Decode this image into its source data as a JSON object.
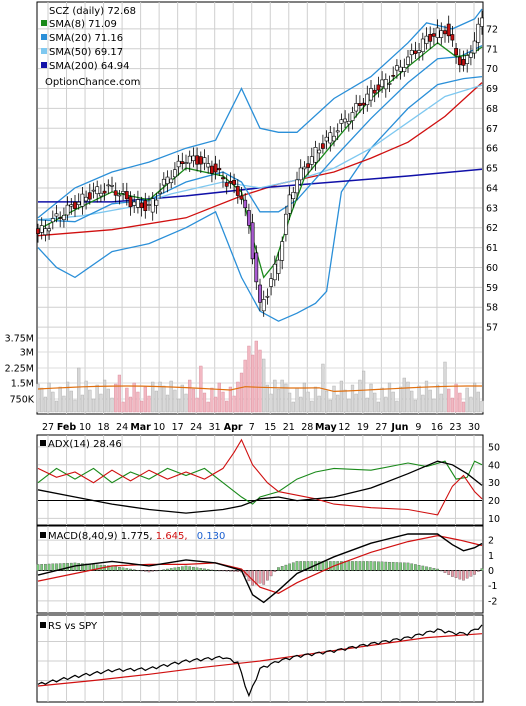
{
  "chart_data": [
    {
      "type": "candlestick",
      "panel": "price",
      "ticker_label": "SCZ (daily)",
      "last_price": "72.68",
      "watermark": "OptionChance.com",
      "legend": [
        {
          "label": "SMA(8)",
          "value": "71.09",
          "color": "#1a8a1a"
        },
        {
          "label": "SMA(20)",
          "value": "71.16",
          "color": "#2a8fd8"
        },
        {
          "label": "SMA(50)",
          "value": "69.17",
          "color": "#7ec8f0"
        },
        {
          "label": "SMA(200)",
          "value": "64.94",
          "color": "#1010a8"
        }
      ],
      "y_ticks": [
        "72",
        "71",
        "70",
        "69",
        "68",
        "67",
        "66",
        "65",
        "64",
        "63",
        "62",
        "61",
        "60",
        "59",
        "58",
        "57"
      ],
      "ylim": [
        56,
        73
      ],
      "x_ticks": [
        "27",
        "Feb",
        "10",
        "18",
        "24",
        "Mar",
        "10",
        "17",
        "24",
        "31",
        "Apr",
        "7",
        "15",
        "21",
        "28",
        "May",
        "12",
        "19",
        "27",
        "Jun",
        "9",
        "16",
        "23",
        "30"
      ],
      "x_ticks_bold": [
        "Feb",
        "Mar",
        "Apr",
        "May",
        "Jun"
      ],
      "close_path": [
        [
          0,
          61.7
        ],
        [
          5,
          62.5
        ],
        [
          10,
          63.2
        ],
        [
          15,
          63.8
        ],
        [
          20,
          64.0
        ],
        [
          25,
          63.3
        ],
        [
          30,
          63.0
        ],
        [
          35,
          64.5
        ],
        [
          40,
          65.5
        ],
        [
          45,
          65.3
        ],
        [
          50,
          64.5
        ],
        [
          55,
          63.6
        ],
        [
          57,
          62.0
        ],
        [
          60,
          58.0
        ],
        [
          62,
          58.8
        ],
        [
          65,
          60.5
        ],
        [
          68,
          63.5
        ],
        [
          70,
          64.5
        ],
        [
          75,
          65.8
        ],
        [
          80,
          66.8
        ],
        [
          85,
          67.8
        ],
        [
          90,
          68.8
        ],
        [
          95,
          69.5
        ],
        [
          100,
          70.5
        ],
        [
          105,
          71.5
        ],
        [
          110,
          72.0
        ],
        [
          112,
          71.2
        ],
        [
          115,
          70.0
        ],
        [
          118,
          71.5
        ],
        [
          120,
          72.5
        ]
      ],
      "sma8": [
        [
          0,
          61.9
        ],
        [
          10,
          62.9
        ],
        [
          20,
          63.8
        ],
        [
          30,
          63.4
        ],
        [
          40,
          65.0
        ],
        [
          50,
          64.6
        ],
        [
          55,
          63.8
        ],
        [
          58,
          61.5
        ],
        [
          61,
          59.5
        ],
        [
          64,
          60.2
        ],
        [
          68,
          62.5
        ],
        [
          72,
          64.5
        ],
        [
          80,
          66.3
        ],
        [
          90,
          68.5
        ],
        [
          100,
          70.1
        ],
        [
          108,
          71.3
        ],
        [
          113,
          70.6
        ],
        [
          117,
          70.7
        ],
        [
          120,
          71.09
        ]
      ],
      "sma20": [
        [
          0,
          62.4
        ],
        [
          10,
          62.3
        ],
        [
          20,
          63.2
        ],
        [
          30,
          63.4
        ],
        [
          40,
          64.3
        ],
        [
          50,
          64.8
        ],
        [
          55,
          64.3
        ],
        [
          60,
          62.8
        ],
        [
          65,
          62.8
        ],
        [
          70,
          63.4
        ],
        [
          80,
          65.5
        ],
        [
          90,
          67.5
        ],
        [
          100,
          69.3
        ],
        [
          108,
          70.5
        ],
        [
          114,
          70.6
        ],
        [
          120,
          71.16
        ]
      ],
      "sma50": [
        [
          0,
          62.4
        ],
        [
          12,
          62.6
        ],
        [
          24,
          63.0
        ],
        [
          36,
          63.7
        ],
        [
          50,
          64.3
        ],
        [
          60,
          64.0
        ],
        [
          70,
          64.4
        ],
        [
          80,
          65.0
        ],
        [
          90,
          66.0
        ],
        [
          100,
          67.3
        ],
        [
          110,
          68.6
        ],
        [
          120,
          69.17
        ]
      ],
      "sma200": [
        [
          0,
          63.3
        ],
        [
          20,
          63.3
        ],
        [
          40,
          63.6
        ],
        [
          60,
          64.0
        ],
        [
          80,
          64.3
        ],
        [
          100,
          64.6
        ],
        [
          120,
          64.94
        ]
      ],
      "sma_red": [
        [
          0,
          61.6
        ],
        [
          20,
          61.9
        ],
        [
          40,
          62.5
        ],
        [
          55,
          63.6
        ],
        [
          65,
          64.2
        ],
        [
          80,
          64.8
        ],
        [
          90,
          65.5
        ],
        [
          100,
          66.3
        ],
        [
          110,
          67.6
        ],
        [
          120,
          69.3
        ]
      ],
      "bb_upper": [
        [
          0,
          62.5
        ],
        [
          10,
          64.0
        ],
        [
          20,
          64.8
        ],
        [
          30,
          65.3
        ],
        [
          40,
          66.0
        ],
        [
          48,
          66.4
        ],
        [
          55,
          69.0
        ],
        [
          60,
          67.0
        ],
        [
          65,
          66.8
        ],
        [
          70,
          66.8
        ],
        [
          80,
          68.5
        ],
        [
          90,
          69.6
        ],
        [
          100,
          71.3
        ],
        [
          105,
          72.3
        ],
        [
          112,
          72.0
        ],
        [
          118,
          72.5
        ],
        [
          120,
          73.0
        ]
      ],
      "bb_lower": [
        [
          0,
          61.0
        ],
        [
          5,
          60.0
        ],
        [
          10,
          59.5
        ],
        [
          20,
          60.8
        ],
        [
          30,
          61.2
        ],
        [
          40,
          62.0
        ],
        [
          48,
          62.8
        ],
        [
          55,
          59.5
        ],
        [
          60,
          57.8
        ],
        [
          65,
          57.3
        ],
        [
          70,
          57.7
        ],
        [
          75,
          58.2
        ],
        [
          78,
          58.8
        ],
        [
          82,
          63.8
        ],
        [
          90,
          66.0
        ],
        [
          100,
          68.0
        ],
        [
          108,
          69.2
        ],
        [
          115,
          69.5
        ],
        [
          120,
          69.6
        ]
      ],
      "volume_ticks": [
        "3.75M",
        "3M",
        "2.25M",
        "1.5M",
        "750K"
      ]
    },
    {
      "type": "line",
      "panel": "adx",
      "label": "ADX(14) 28.46",
      "y_ticks": [
        "50",
        "40",
        "30",
        "20",
        "10"
      ],
      "ylim": [
        8,
        55
      ],
      "adx": [
        [
          0,
          26
        ],
        [
          10,
          22
        ],
        [
          20,
          18
        ],
        [
          30,
          15
        ],
        [
          40,
          13
        ],
        [
          50,
          15
        ],
        [
          55,
          17
        ],
        [
          60,
          21
        ],
        [
          65,
          22
        ],
        [
          70,
          20
        ],
        [
          80,
          22
        ],
        [
          90,
          27
        ],
        [
          100,
          35
        ],
        [
          108,
          42
        ],
        [
          112,
          40
        ],
        [
          116,
          35
        ],
        [
          120,
          28.46
        ]
      ],
      "plus_di": [
        [
          0,
          30
        ],
        [
          5,
          38
        ],
        [
          10,
          32
        ],
        [
          15,
          38
        ],
        [
          20,
          30
        ],
        [
          25,
          36
        ],
        [
          30,
          32
        ],
        [
          35,
          38
        ],
        [
          40,
          34
        ],
        [
          45,
          38
        ],
        [
          50,
          30
        ],
        [
          55,
          22
        ],
        [
          58,
          18
        ],
        [
          60,
          22
        ],
        [
          65,
          25
        ],
        [
          70,
          32
        ],
        [
          75,
          36
        ],
        [
          80,
          38
        ],
        [
          90,
          37
        ],
        [
          100,
          41
        ],
        [
          105,
          39
        ],
        [
          110,
          42
        ],
        [
          113,
          32
        ],
        [
          116,
          33
        ],
        [
          118,
          42
        ],
        [
          120,
          40
        ]
      ],
      "minus_di": [
        [
          0,
          38
        ],
        [
          5,
          33
        ],
        [
          10,
          36
        ],
        [
          15,
          30
        ],
        [
          20,
          37
        ],
        [
          25,
          31
        ],
        [
          30,
          37
        ],
        [
          35,
          32
        ],
        [
          40,
          36
        ],
        [
          45,
          32
        ],
        [
          50,
          38
        ],
        [
          53,
          47
        ],
        [
          55,
          54
        ],
        [
          58,
          40
        ],
        [
          62,
          30
        ],
        [
          65,
          25
        ],
        [
          70,
          23
        ],
        [
          75,
          21
        ],
        [
          80,
          18
        ],
        [
          90,
          16
        ],
        [
          100,
          15
        ],
        [
          108,
          12
        ],
        [
          112,
          28
        ],
        [
          115,
          34
        ],
        [
          118,
          25
        ],
        [
          120,
          21
        ]
      ]
    },
    {
      "type": "line",
      "panel": "macd",
      "label": "MACD(8,40,9)",
      "macd_value": "1.775,",
      "signal_value": "1.645,",
      "hist_value": "0.130",
      "y_ticks": [
        "2",
        "1",
        "0",
        "-1",
        "-2"
      ],
      "ylim": [
        -2.6,
        2.6
      ],
      "macd": [
        [
          0,
          -0.3
        ],
        [
          10,
          0.3
        ],
        [
          20,
          0.6
        ],
        [
          30,
          0.3
        ],
        [
          40,
          0.7
        ],
        [
          48,
          0.5
        ],
        [
          55,
          0.0
        ],
        [
          58,
          -1.6
        ],
        [
          61,
          -2.1
        ],
        [
          65,
          -1.3
        ],
        [
          70,
          -0.2
        ],
        [
          80,
          0.9
        ],
        [
          90,
          1.8
        ],
        [
          100,
          2.4
        ],
        [
          108,
          2.4
        ],
        [
          112,
          1.7
        ],
        [
          115,
          1.3
        ],
        [
          118,
          1.5
        ],
        [
          120,
          1.775
        ]
      ],
      "signal": [
        [
          0,
          -0.7
        ],
        [
          10,
          -0.2
        ],
        [
          20,
          0.3
        ],
        [
          30,
          0.4
        ],
        [
          40,
          0.4
        ],
        [
          48,
          0.5
        ],
        [
          55,
          0.1
        ],
        [
          60,
          -1.1
        ],
        [
          65,
          -1.5
        ],
        [
          70,
          -0.8
        ],
        [
          80,
          0.3
        ],
        [
          90,
          1.2
        ],
        [
          100,
          1.9
        ],
        [
          108,
          2.3
        ],
        [
          114,
          2.0
        ],
        [
          120,
          1.645
        ]
      ]
    },
    {
      "type": "line",
      "panel": "relative_strength",
      "label": "RS vs SPY",
      "rs": [
        [
          0,
          0.2
        ],
        [
          10,
          0.3
        ],
        [
          20,
          0.38
        ],
        [
          30,
          0.4
        ],
        [
          40,
          0.5
        ],
        [
          50,
          0.55
        ],
        [
          54,
          0.48
        ],
        [
          57,
          0.05
        ],
        [
          60,
          0.4
        ],
        [
          65,
          0.5
        ],
        [
          70,
          0.56
        ],
        [
          80,
          0.63
        ],
        [
          90,
          0.72
        ],
        [
          100,
          0.8
        ],
        [
          108,
          0.9
        ],
        [
          112,
          0.86
        ],
        [
          116,
          0.85
        ],
        [
          120,
          0.95
        ]
      ],
      "rs_avg": [
        [
          0,
          0.18
        ],
        [
          15,
          0.25
        ],
        [
          30,
          0.33
        ],
        [
          45,
          0.42
        ],
        [
          60,
          0.5
        ],
        [
          75,
          0.6
        ],
        [
          90,
          0.7
        ],
        [
          105,
          0.8
        ],
        [
          120,
          0.85
        ]
      ]
    }
  ]
}
